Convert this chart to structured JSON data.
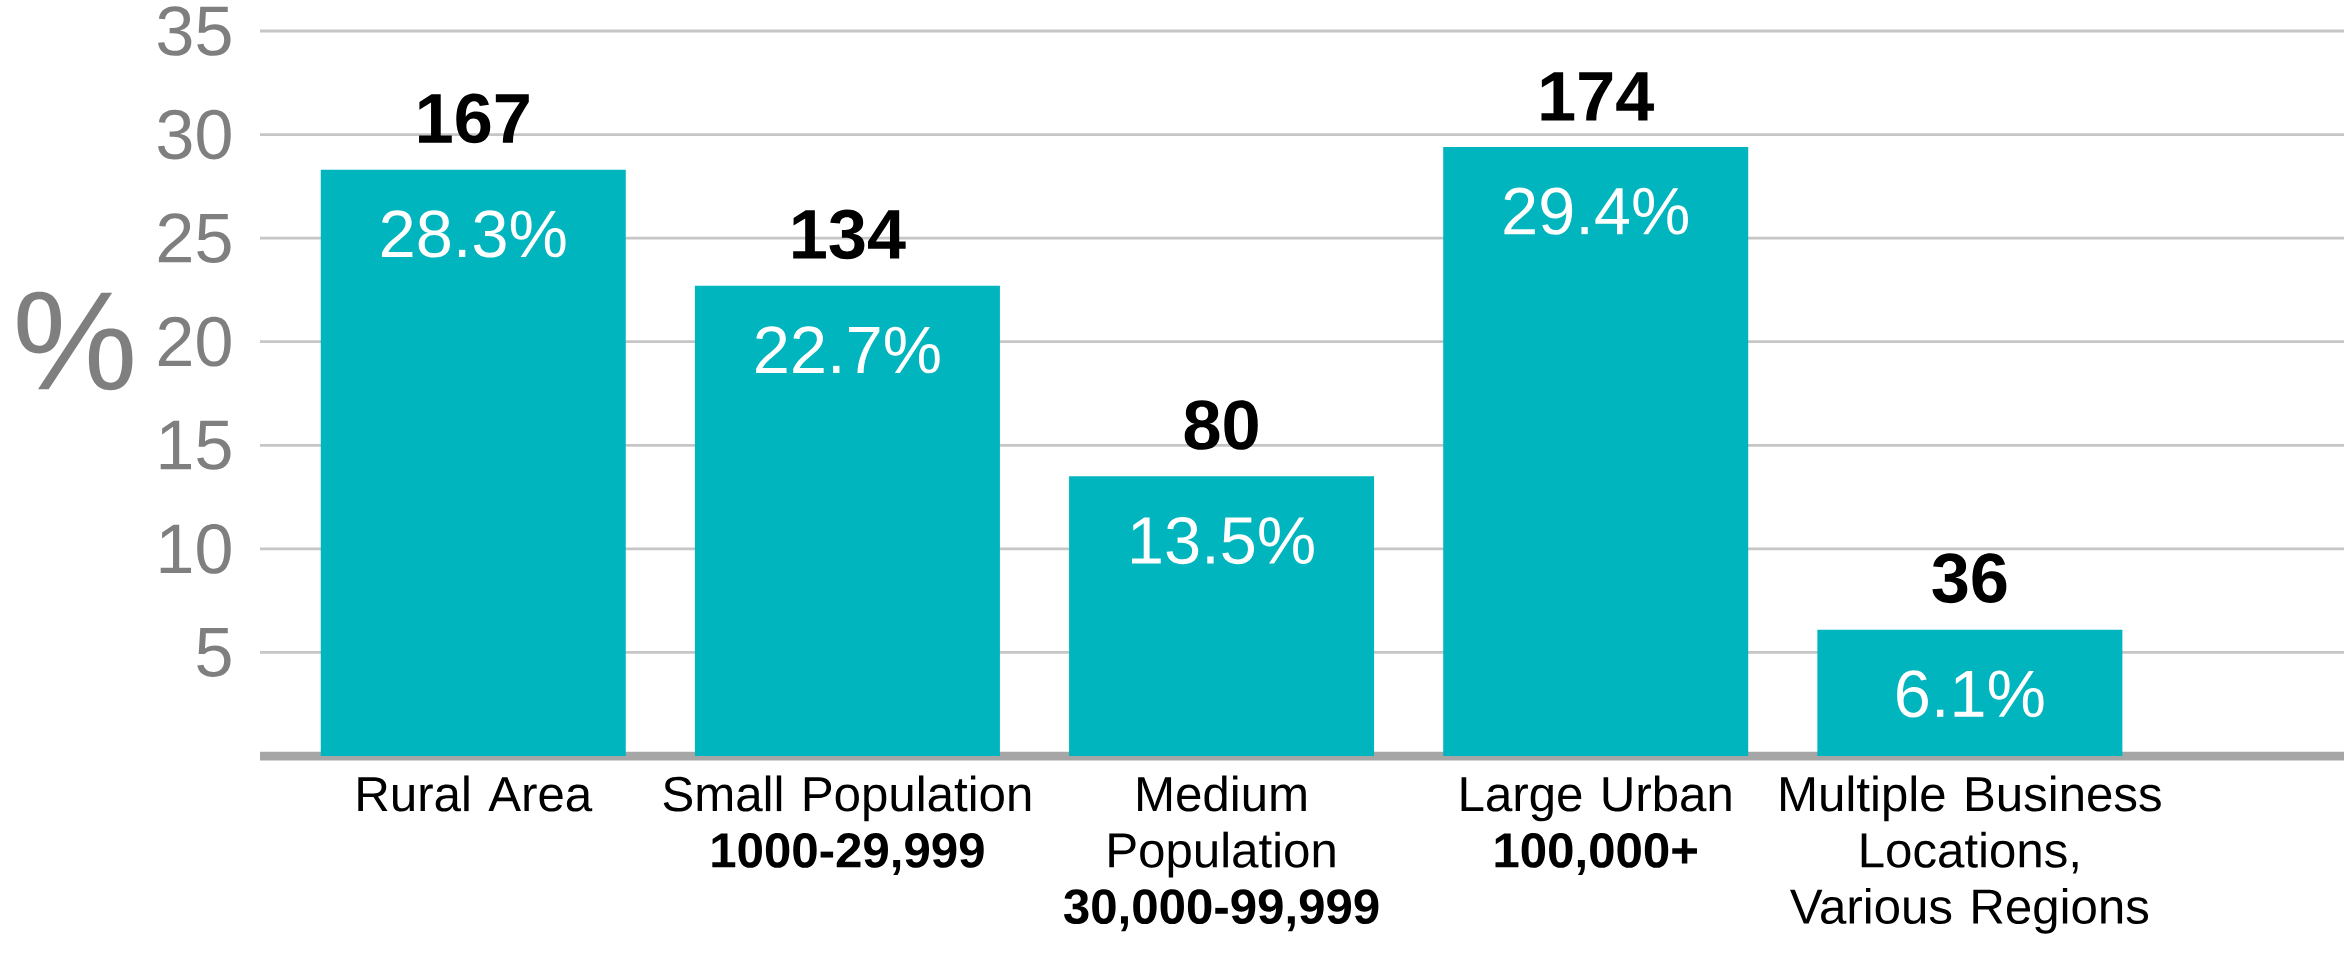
{
  "chart_data": {
    "type": "bar",
    "ylabel": "%",
    "categories": [
      "Rural Area",
      "Small Population **1000-29,999**",
      "Medium Population **30,000-99,999**",
      "Large Urban **100,000+**",
      "Multiple Business Locations, Various Regions"
    ],
    "values": [
      28.3,
      22.7,
      13.5,
      29.4,
      6.1
    ],
    "value_labels": [
      "28.3%",
      "22.7%",
      "13.5%",
      "29.4%",
      "6.1%"
    ],
    "color": "#00b5bd",
    "ylim": [
      0,
      35
    ],
    "yticks": [
      5,
      10,
      15,
      20,
      25,
      30,
      35
    ],
    "grid": "y",
    "annotations": [
      {
        "text": "167",
        "x": "Rural Area",
        "y": 28.3
      },
      {
        "text": "134",
        "x": "Small Population **1000-29,999**",
        "y": 22.7
      },
      {
        "text": "80",
        "x": "Medium Population **30,000-99,999**",
        "y": 13.5
      },
      {
        "text": "174",
        "x": "Large Urban **100,000+**",
        "y": 29.4
      },
      {
        "text": "36",
        "x": "Multiple Business Locations, Various Regions",
        "y": 6.1
      }
    ]
  }
}
